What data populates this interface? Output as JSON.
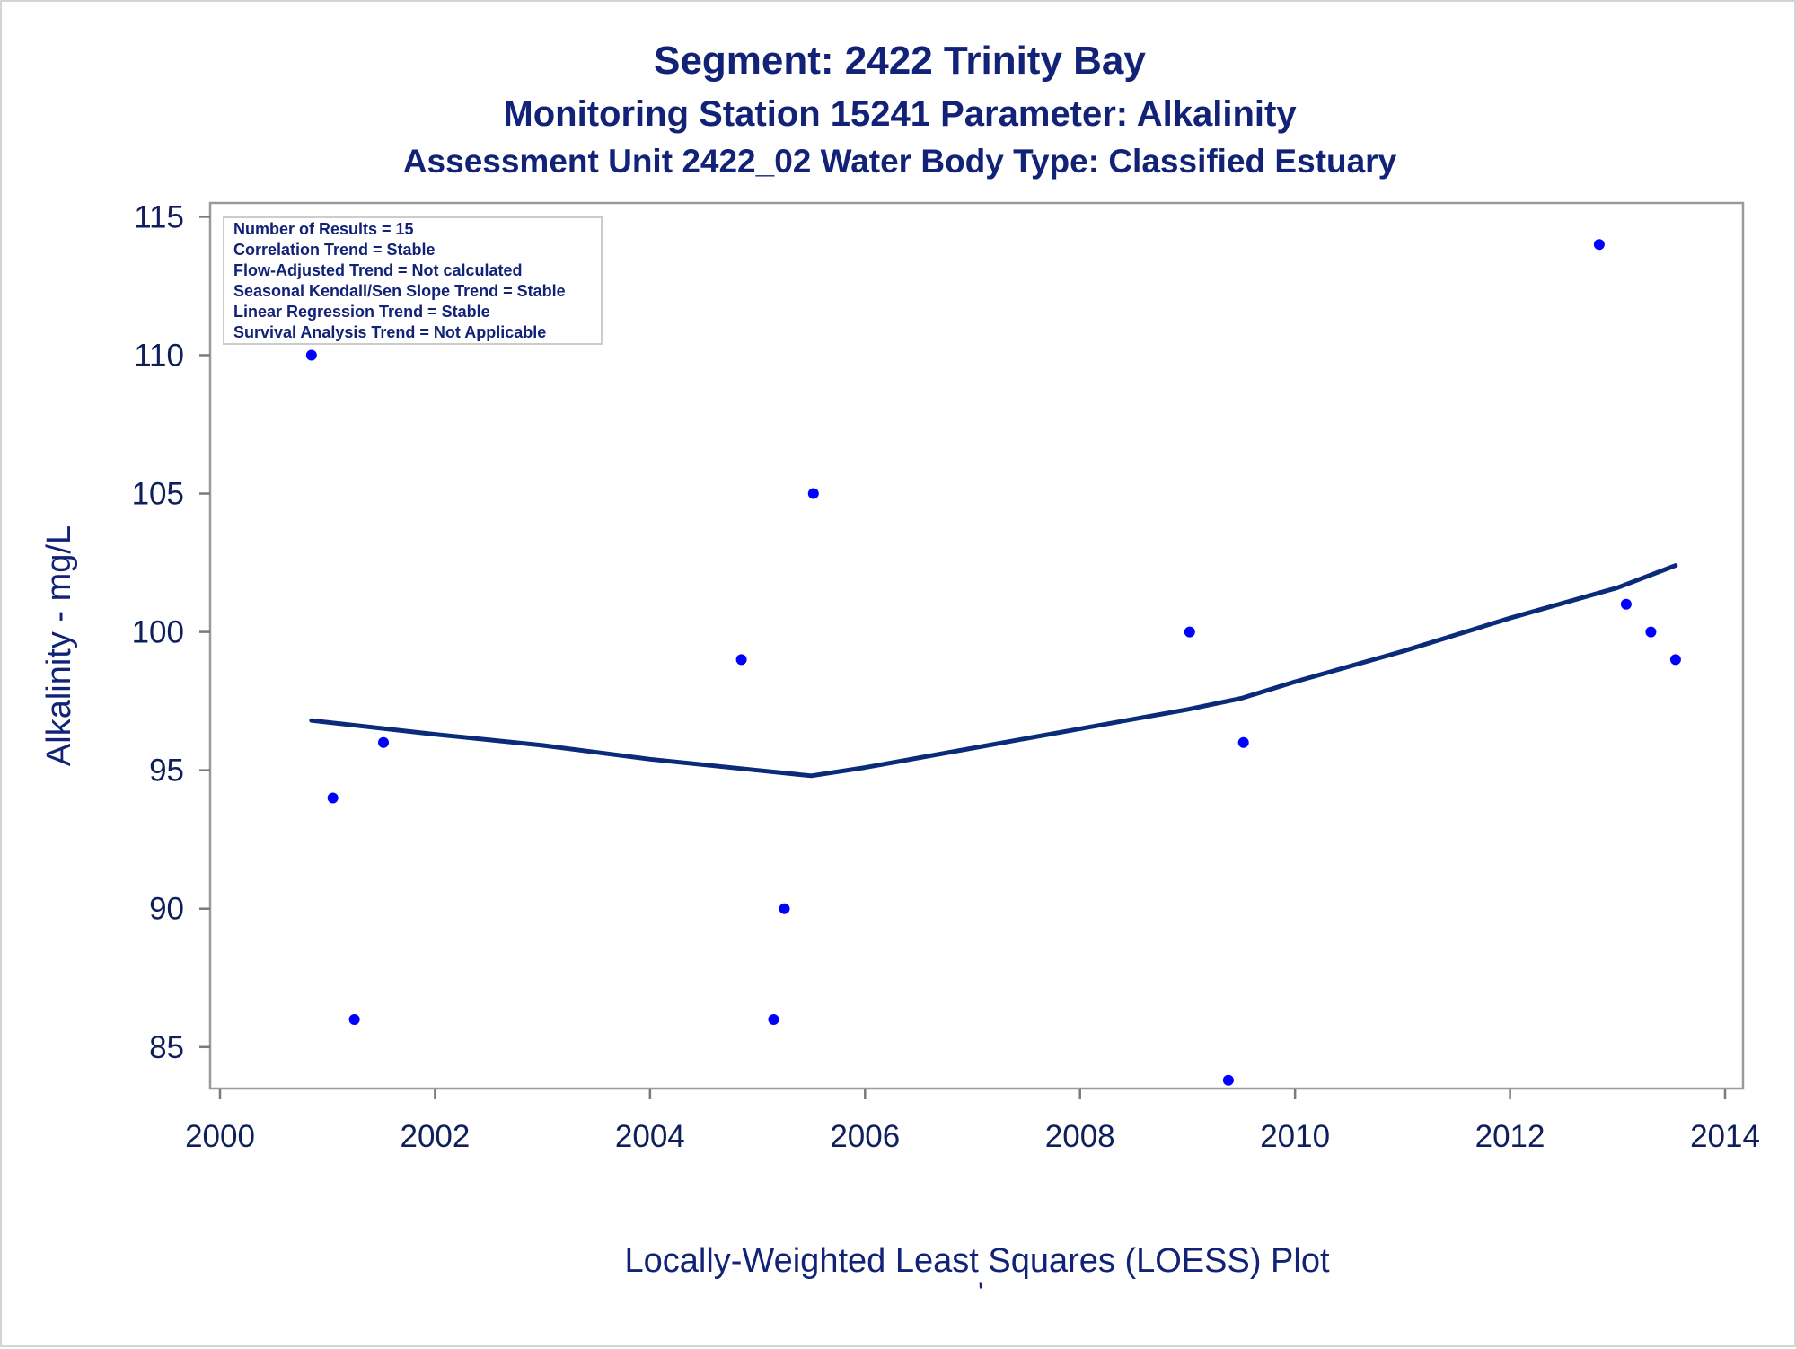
{
  "chart_data": {
    "type": "scatter",
    "title": "Segment: 2422  Trinity Bay",
    "subtitle": "Monitoring Station 15241 Parameter: Alkalinity",
    "subtitle2": "Assessment Unit 2422_02   Water Body Type: Classified Estuary",
    "xlabel": "Locally-Weighted Least Squares (LOESS) Plot",
    "ylabel": "Alkalinity - mg/L",
    "footnote_mark": "'",
    "xlim": [
      2000,
      2014
    ],
    "ylim": [
      83.5,
      115.5
    ],
    "x_ticks": [
      2000,
      2002,
      2004,
      2006,
      2008,
      2010,
      2012,
      2014
    ],
    "y_ticks": [
      85,
      90,
      95,
      100,
      105,
      110,
      115
    ],
    "grid": false,
    "point_color": "#0000ff",
    "line_color": "#0a2a7a",
    "text_color": "#112277",
    "series": [
      {
        "name": "Alkalinity",
        "kind": "scatter",
        "points": [
          {
            "x": 2000.85,
            "y": 110
          },
          {
            "x": 2001.05,
            "y": 94
          },
          {
            "x": 2001.25,
            "y": 86
          },
          {
            "x": 2001.52,
            "y": 96
          },
          {
            "x": 2004.85,
            "y": 99
          },
          {
            "x": 2005.15,
            "y": 86
          },
          {
            "x": 2005.25,
            "y": 90
          },
          {
            "x": 2005.52,
            "y": 105
          },
          {
            "x": 2009.02,
            "y": 100
          },
          {
            "x": 2009.38,
            "y": 83.8
          },
          {
            "x": 2009.52,
            "y": 96
          },
          {
            "x": 2012.83,
            "y": 114
          },
          {
            "x": 2013.08,
            "y": 101
          },
          {
            "x": 2013.31,
            "y": 100
          },
          {
            "x": 2013.54,
            "y": 99
          }
        ]
      },
      {
        "name": "LOESS fit",
        "kind": "line",
        "points": [
          {
            "x": 2000.85,
            "y": 96.8
          },
          {
            "x": 2002.0,
            "y": 96.3
          },
          {
            "x": 2003.0,
            "y": 95.9
          },
          {
            "x": 2004.0,
            "y": 95.4
          },
          {
            "x": 2005.0,
            "y": 95.0
          },
          {
            "x": 2005.5,
            "y": 94.8
          },
          {
            "x": 2006.0,
            "y": 95.1
          },
          {
            "x": 2007.0,
            "y": 95.8
          },
          {
            "x": 2008.0,
            "y": 96.5
          },
          {
            "x": 2009.0,
            "y": 97.2
          },
          {
            "x": 2009.5,
            "y": 97.6
          },
          {
            "x": 2010.0,
            "y": 98.2
          },
          {
            "x": 2011.0,
            "y": 99.3
          },
          {
            "x": 2012.0,
            "y": 100.5
          },
          {
            "x": 2013.0,
            "y": 101.6
          },
          {
            "x": 2013.54,
            "y": 102.4
          }
        ]
      }
    ],
    "annotation_box": {
      "placement": "top-left",
      "lines": [
        "Number of Results = 15",
        "Correlation Trend = Stable",
        "Flow-Adjusted Trend = Not calculated",
        "Seasonal Kendall/Sen Slope Trend = Stable",
        "Linear Regression Trend = Stable",
        "Survival Analysis Trend = Not Applicable"
      ]
    }
  }
}
